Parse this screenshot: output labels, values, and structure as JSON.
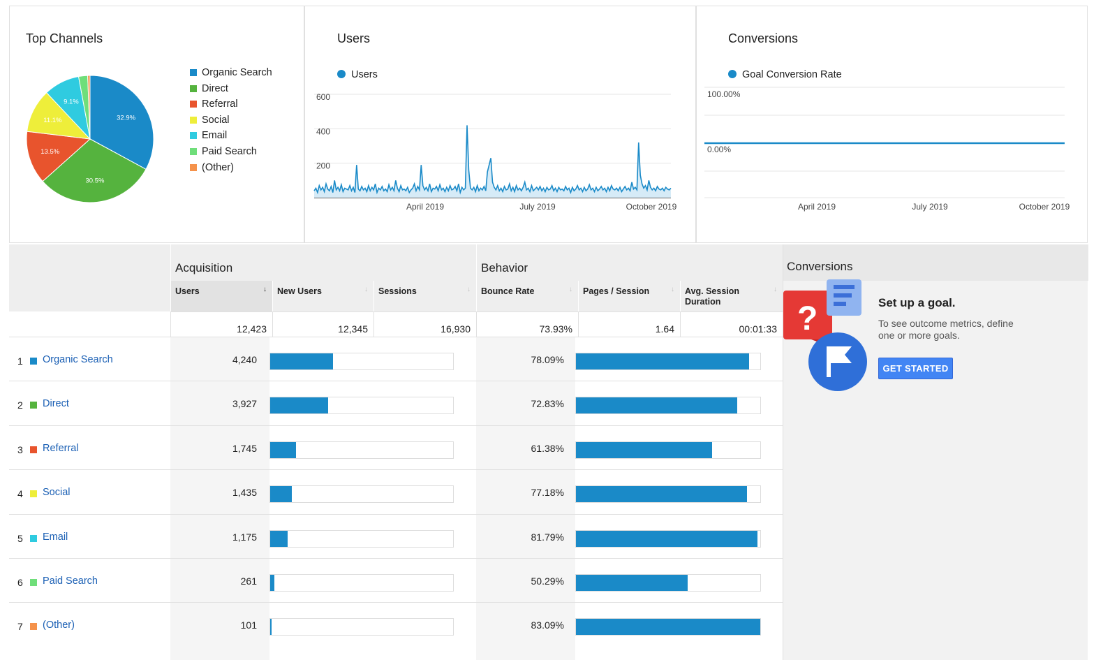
{
  "top_channels": {
    "title": "Top Channels",
    "chart_data": {
      "type": "pie",
      "slices": [
        {
          "name": "Organic Search",
          "value": 32.9,
          "label": "32.9%",
          "color": "#1a8ac8"
        },
        {
          "name": "Direct",
          "value": 30.5,
          "label": "30.5%",
          "color": "#55b33e"
        },
        {
          "name": "Referral",
          "value": 13.5,
          "label": "13.5%",
          "color": "#e8542d"
        },
        {
          "name": "Social",
          "value": 11.1,
          "label": "11.1%",
          "color": "#eeee3a"
        },
        {
          "name": "Email",
          "value": 9.1,
          "label": "9.1%",
          "color": "#2fcbe0"
        },
        {
          "name": "Paid Search",
          "value": 2.3,
          "label": "",
          "color": "#6fde7a"
        },
        {
          "name": "(Other)",
          "value": 0.6,
          "label": "",
          "color": "#f5924b"
        }
      ]
    },
    "legend": [
      "Organic Search",
      "Direct",
      "Referral",
      "Social",
      "Email",
      "Paid Search",
      "(Other)"
    ]
  },
  "users_chart": {
    "title": "Users",
    "legend": "Users",
    "chart_data": {
      "type": "line",
      "series_name": "Users",
      "y_ticks": [
        "600",
        "400",
        "200"
      ],
      "x_ticks": [
        "April 2019",
        "July 2019",
        "October 2019"
      ],
      "ylim": [
        0,
        600
      ],
      "color": "#1a8ac8",
      "values": [
        40,
        55,
        30,
        70,
        45,
        60,
        35,
        80,
        50,
        40,
        65,
        30,
        100,
        45,
        60,
        40,
        75,
        35,
        55,
        50,
        45,
        70,
        40,
        60,
        30,
        190,
        50,
        40,
        65,
        45,
        55,
        35,
        70,
        40,
        60,
        45,
        80,
        30,
        55,
        45,
        65,
        40,
        50,
        35,
        75,
        45,
        60,
        40,
        100,
        55,
        35,
        70,
        45,
        50,
        40,
        60,
        30,
        45,
        55,
        80,
        40,
        65,
        45,
        190,
        70,
        45,
        60,
        40,
        80,
        35,
        55,
        50,
        65,
        40,
        75,
        45,
        55,
        35,
        60,
        40,
        70,
        45,
        50,
        65,
        40,
        80,
        30,
        60,
        45,
        55,
        420,
        160,
        55,
        45,
        60,
        35,
        70,
        40,
        55,
        45,
        65,
        40,
        150,
        190,
        230,
        90,
        60,
        45,
        70,
        40,
        55,
        35,
        65,
        45,
        50,
        80,
        40,
        60,
        35,
        70,
        45,
        55,
        40,
        60,
        90,
        45,
        55,
        35,
        70,
        40,
        50,
        60,
        45,
        65,
        40,
        55,
        35,
        60,
        45,
        50,
        70,
        40,
        55,
        35,
        60,
        45,
        50,
        40,
        65,
        45,
        55,
        30,
        60,
        40,
        50,
        70,
        45,
        55,
        35,
        60,
        40,
        50,
        75,
        45,
        55,
        35,
        60,
        40,
        50,
        65,
        45,
        55,
        35,
        60,
        40,
        70,
        50,
        45,
        55,
        40,
        60,
        35,
        50,
        65,
        45,
        55,
        40,
        90,
        50,
        60,
        45,
        320,
        130,
        80,
        55,
        70,
        45,
        100,
        60,
        45,
        55,
        40,
        65,
        50,
        45,
        55,
        40,
        60,
        50,
        45,
        55
      ]
    }
  },
  "conversions_chart": {
    "title": "Conversions",
    "legend": "Goal Conversion Rate",
    "chart_data": {
      "type": "line",
      "series_name": "Goal Conversion Rate",
      "y_ticks": [
        "100.00%",
        "0.00%"
      ],
      "x_ticks": [
        "April 2019",
        "July 2019",
        "October 2019"
      ],
      "ylim": [
        0,
        100
      ],
      "values": [
        0,
        0
      ],
      "color": "#1a8ac8"
    }
  },
  "table": {
    "groups": {
      "acquisition": "Acquisition",
      "behavior": "Behavior"
    },
    "columns": {
      "users": "Users",
      "new_users": "New Users",
      "sessions": "Sessions",
      "bounce_rate": "Bounce Rate",
      "pages_session": "Pages / Session",
      "avg_session_1": "Avg. Session",
      "avg_session_2": "Duration"
    },
    "totals": {
      "users": "12,423",
      "new_users": "12,345",
      "sessions": "16,930",
      "bounce_rate": "73.93%",
      "pages_session": "1.64",
      "avg_session": "00:01:33"
    },
    "rows": [
      {
        "rank": "1",
        "name": "Organic Search",
        "color": "#1a8ac8",
        "users": "4,240",
        "users_bar": 0.341,
        "bounce": "78.09%",
        "bounce_bar": 0.94
      },
      {
        "rank": "2",
        "name": "Direct",
        "color": "#55b33e",
        "users": "3,927",
        "users_bar": 0.316,
        "bounce": "72.83%",
        "bounce_bar": 0.876
      },
      {
        "rank": "3",
        "name": "Referral",
        "color": "#e8542d",
        "users": "1,745",
        "users_bar": 0.14,
        "bounce": "61.38%",
        "bounce_bar": 0.739
      },
      {
        "rank": "4",
        "name": "Social",
        "color": "#eeee3a",
        "users": "1,435",
        "users_bar": 0.116,
        "bounce": "77.18%",
        "bounce_bar": 0.929
      },
      {
        "rank": "5",
        "name": "Email",
        "color": "#2fcbe0",
        "users": "1,175",
        "users_bar": 0.095,
        "bounce": "81.79%",
        "bounce_bar": 0.984
      },
      {
        "rank": "6",
        "name": "Paid Search",
        "color": "#6fde7a",
        "users": "261",
        "users_bar": 0.021,
        "bounce": "50.29%",
        "bounce_bar": 0.605
      },
      {
        "rank": "7",
        "name": "(Other)",
        "color": "#f5924b",
        "users": "101",
        "users_bar": 0.008,
        "bounce": "83.09%",
        "bounce_bar": 1.0
      }
    ]
  },
  "goal_panel": {
    "header": "Conversions",
    "title": "Set up a goal.",
    "desc_line1": "To see outcome metrics, define",
    "desc_line2": "one or more goals.",
    "button": "GET STARTED"
  }
}
